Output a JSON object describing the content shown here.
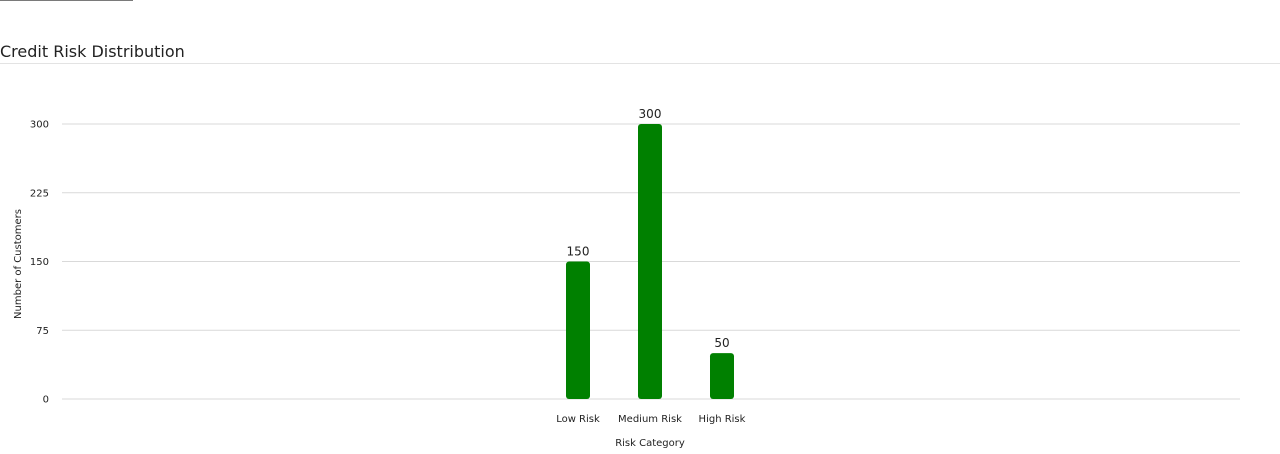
{
  "panel": {
    "title": "Credit Risk Distribution"
  },
  "colors": {
    "bar": "#008000",
    "grid": "#d9d9d9",
    "divider": "#e3e3e3"
  },
  "chart_data": {
    "type": "bar",
    "categories": [
      "Low Risk",
      "Medium Risk",
      "High Risk"
    ],
    "values": [
      150,
      300,
      50
    ],
    "data_labels": [
      "150",
      "300",
      "50"
    ],
    "xlabel": "Risk Category",
    "ylabel": "Number of Customers",
    "ylim": [
      0,
      300
    ],
    "yticks": [
      0,
      75,
      150,
      225,
      300
    ],
    "ytick_labels": [
      "0",
      "75",
      "150",
      "225",
      "300"
    ],
    "grid": true,
    "legend": "none"
  }
}
